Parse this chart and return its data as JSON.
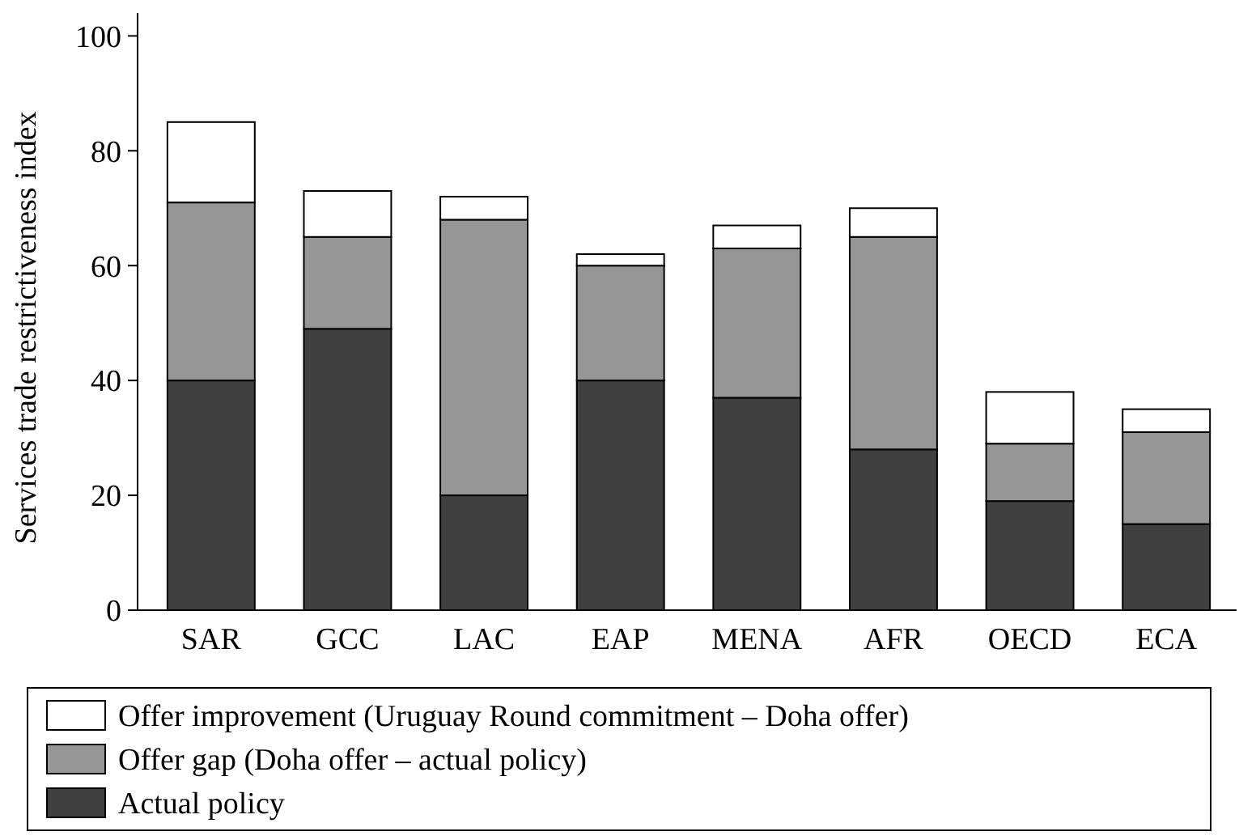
{
  "chart_data": {
    "type": "bar",
    "stacked": true,
    "ylabel": "Services trade restrictiveness index",
    "categories": [
      "SAR",
      "GCC",
      "LAC",
      "EAP",
      "MENA",
      "AFR",
      "OECD",
      "ECA"
    ],
    "series": [
      {
        "name": "Actual policy",
        "color": "#404040",
        "values": [
          40,
          49,
          20,
          40,
          37,
          28,
          19,
          15
        ]
      },
      {
        "name": "Offer gap (Doha offer – actual policy)",
        "color": "#969696",
        "values": [
          31,
          16,
          48,
          20,
          26,
          37,
          10,
          16
        ]
      },
      {
        "name": "Offer improvement (Uruguay Round commitment – Doha offer)",
        "color": "#ffffff",
        "values": [
          14,
          8,
          4,
          2,
          4,
          5,
          9,
          4
        ]
      }
    ],
    "ylim": [
      0,
      104
    ],
    "yticks": [
      0,
      20,
      40,
      60,
      80,
      100
    ],
    "grid": false,
    "legend": "bottom"
  }
}
